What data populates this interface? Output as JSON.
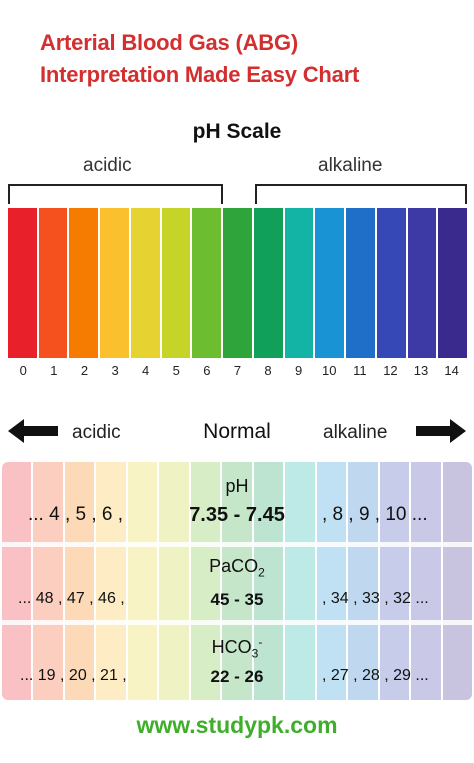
{
  "title": {
    "line1": "Arterial Blood Gas (ABG)",
    "line2": "Interpretation Made Easy Chart"
  },
  "scale": {
    "heading": "pH Scale",
    "acidic_label": "acidic",
    "alkaline_label": "alkaline",
    "ticks": [
      "0",
      "1",
      "2",
      "3",
      "4",
      "5",
      "6",
      "7",
      "8",
      "9",
      "10",
      "11",
      "12",
      "13",
      "14"
    ],
    "colors": [
      "#e8202a",
      "#f4511e",
      "#f57c00",
      "#fbc02d",
      "#e6d331",
      "#c6d42a",
      "#6cbd2f",
      "#2fa43a",
      "#11a05a",
      "#13b4a6",
      "#1a93d4",
      "#1f6fc8",
      "#3548b5",
      "#3d3aa6",
      "#3a2a8e"
    ]
  },
  "direction": {
    "left_label": "acidic",
    "center_label": "Normal",
    "right_label": "alkaline",
    "left_icon": "arrow-left-icon",
    "right_icon": "arrow-right-icon"
  },
  "table": {
    "rows": [
      {
        "param": "pH",
        "left": "... 4 , 5 , 6 ,",
        "normal": "7.35 - 7.45",
        "right": ", 8 , 9 , 10 ..."
      },
      {
        "param_main": "PaCO",
        "param_sub": "2",
        "left": "... 48 , 47 , 46 ,",
        "normal": "45 - 35",
        "right": ", 34 , 33 , 32 ..."
      },
      {
        "param_main": "HCO",
        "param_sub": "3",
        "param_sup": "-",
        "left": "... 19 , 20 , 21 ,",
        "normal": "22 - 26",
        "right": ", 27 , 28 , 29 ..."
      }
    ]
  },
  "footer": {
    "url": "www.studypk.com"
  }
}
